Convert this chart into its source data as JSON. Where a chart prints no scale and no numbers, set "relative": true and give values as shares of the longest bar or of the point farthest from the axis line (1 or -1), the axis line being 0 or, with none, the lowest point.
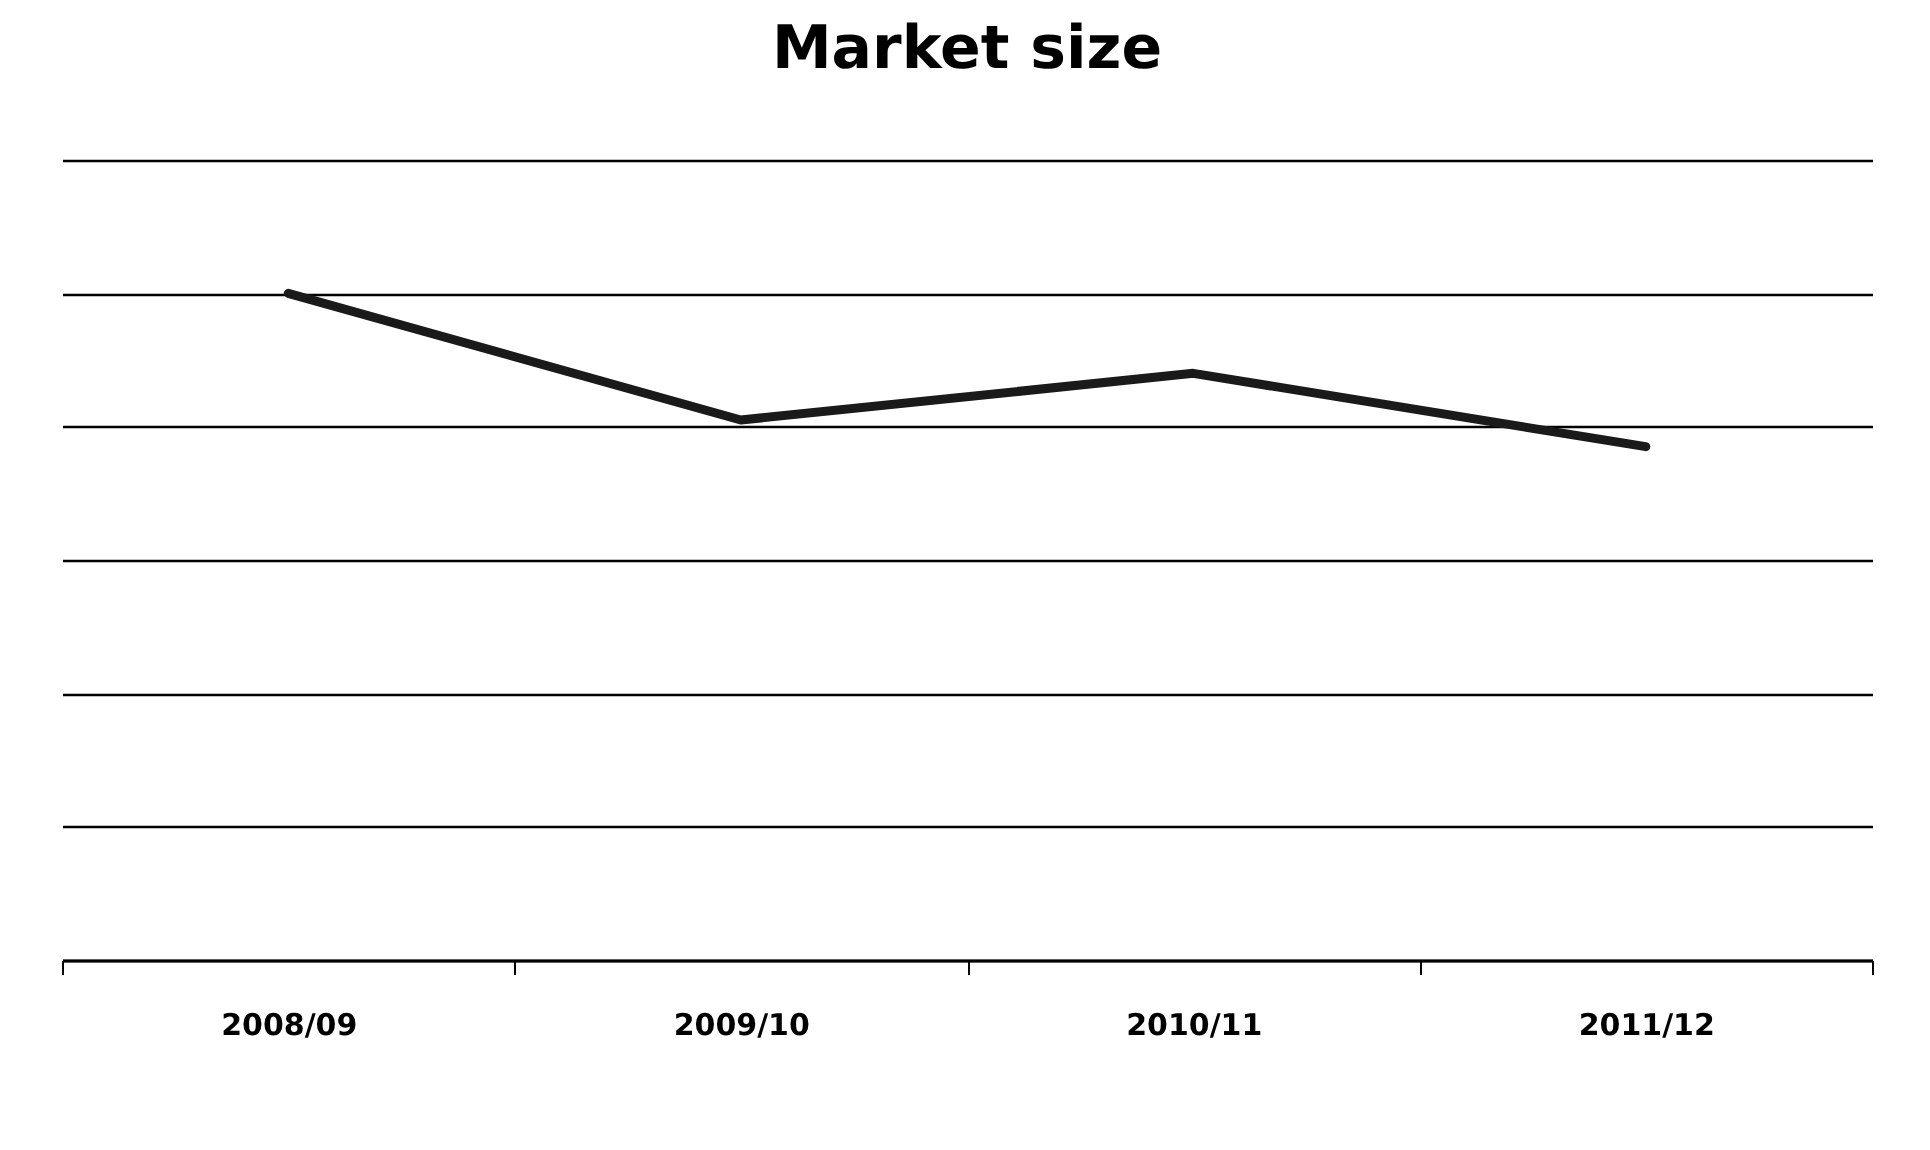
{
  "chart_data": {
    "type": "line",
    "title": "Market size",
    "relative": true,
    "grid": "y",
    "categories": [
      "2008/09",
      "2009/10",
      "2010/11",
      "2011/12"
    ],
    "series": [
      {
        "color": "#1a1a1a",
        "values": [
          1,
          0.81,
          0.88,
          0.77
        ]
      }
    ]
  }
}
